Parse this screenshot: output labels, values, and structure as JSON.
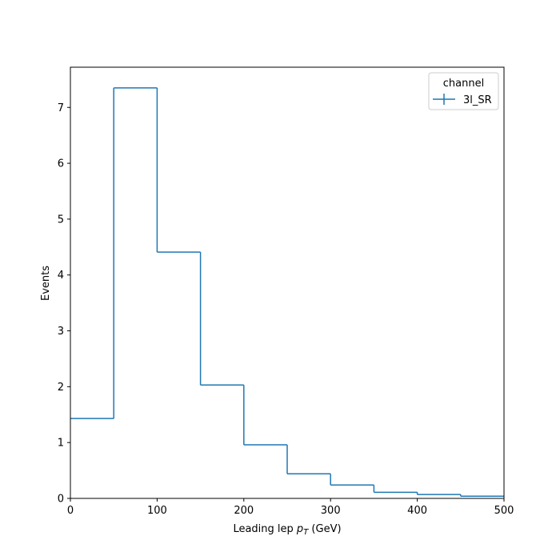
{
  "chart_data": {
    "type": "histogram-step",
    "title": "",
    "xlabel": {
      "prefix": "Leading lep ",
      "var": "p",
      "sub": "T",
      "suffix": " (GeV)"
    },
    "ylabel": "Events",
    "xlim": [
      0,
      500
    ],
    "ylim": [
      0,
      7.72
    ],
    "xticks": [
      0,
      100,
      200,
      300,
      400,
      500
    ],
    "yticks": [
      0,
      1,
      2,
      3,
      4,
      5,
      6,
      7
    ],
    "grid": false,
    "legend": {
      "title": "channel",
      "placement": "top-right",
      "entries": [
        {
          "label": "3l_SR",
          "color": "#1f77b4"
        }
      ]
    },
    "series": [
      {
        "name": "3l_SR",
        "color": "#1f77b4",
        "bin_edges": [
          0,
          50,
          100,
          150,
          200,
          250,
          300,
          350,
          400,
          450,
          500
        ],
        "values": [
          1.43,
          7.35,
          4.41,
          2.03,
          0.96,
          0.44,
          0.24,
          0.11,
          0.07,
          0.04
        ]
      }
    ]
  }
}
